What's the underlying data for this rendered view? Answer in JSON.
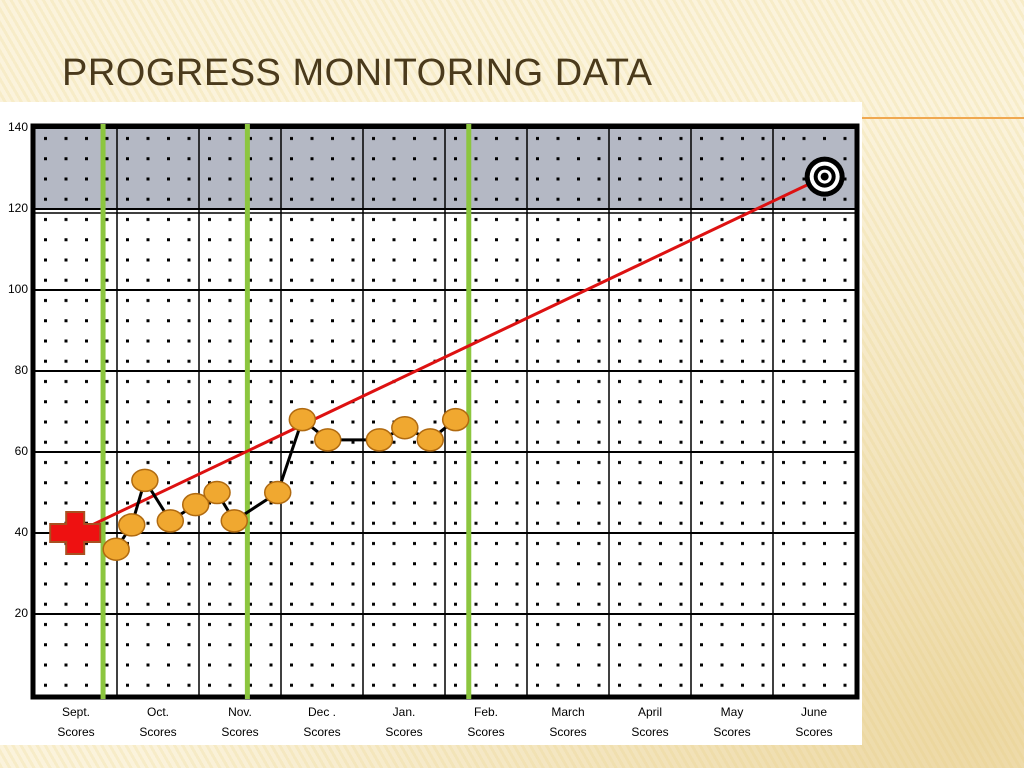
{
  "chart_data": {
    "type": "progress-monitoring",
    "title": "PROGRESS MONITORING DATA",
    "categories": [
      "Sept.",
      "Oct.",
      "Nov.",
      "Dec .",
      "Jan.",
      "Feb.",
      "March",
      "April",
      "May",
      "June"
    ],
    "category_sublabel": "Scores",
    "xlim": [
      0,
      10
    ],
    "ylim": [
      0,
      140
    ],
    "yticks": [
      20,
      40,
      60,
      80,
      100,
      120,
      140
    ],
    "grid": true,
    "goal_band": [
      120,
      140
    ],
    "goal_band_color": "#b4b8c4",
    "phase_lines": [
      0.83,
      2.59,
      5.29
    ],
    "phase_line_color": "#8cc63f",
    "points": {
      "x": [
        0.99,
        1.18,
        1.34,
        1.65,
        1.96,
        2.22,
        2.43,
        2.96,
        3.26,
        3.57,
        4.2,
        4.51,
        4.82,
        5.13
      ],
      "values": [
        36,
        42,
        53,
        43,
        47,
        50,
        43,
        50,
        68,
        63,
        63,
        66,
        63,
        68
      ],
      "color": "#f0a830"
    },
    "baseline": {
      "x": 0.49,
      "value": 40,
      "color": "#ee1111"
    },
    "goal": {
      "x": 9.63,
      "value": 128
    },
    "aimline_color": "#dd1111"
  }
}
